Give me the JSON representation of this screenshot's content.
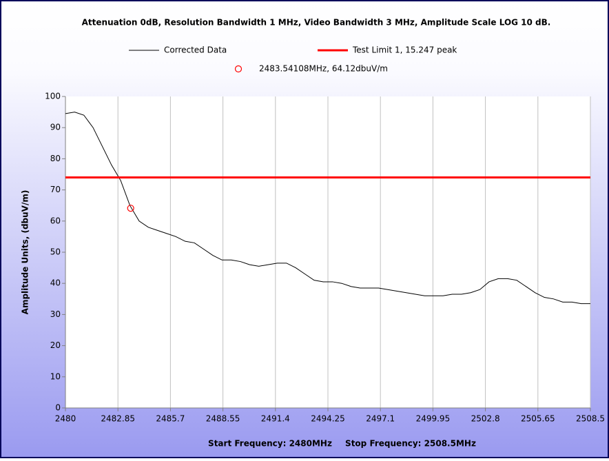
{
  "chart_data": {
    "type": "line",
    "title": "Attenuation 0dB, Resolution Bandwidth 1 MHz, Video Bandwidth 3 MHz, Amplitude Scale LOG 10 dB.",
    "y_label": "Amplitude Units, (dbuV/m)",
    "annotations": [
      "Start Frequency: 2480MHz",
      "Stop Frequency: 2508.5MHz"
    ],
    "xlim": [
      2480,
      2508.5
    ],
    "xticks": [
      2480,
      2482.85,
      2485.7,
      2488.55,
      2491.4,
      2494.25,
      2497.1,
      2499.95,
      2502.8,
      2505.65,
      2508.5
    ],
    "ylim": [
      0,
      100
    ],
    "yticks": [
      0,
      10,
      20,
      30,
      40,
      50,
      60,
      70,
      80,
      90,
      100
    ],
    "grid": "x",
    "series": [
      {
        "name": "Corrected Data",
        "color": "#000000",
        "x": [
          2480,
          2480.5,
          2481,
          2481.5,
          2482,
          2482.5,
          2483,
          2483.5,
          2484,
          2484.5,
          2485,
          2485.5,
          2486,
          2486.5,
          2487,
          2487.5,
          2488,
          2488.5,
          2489,
          2489.5,
          2490,
          2490.5,
          2491,
          2491.5,
          2492,
          2492.5,
          2493,
          2493.5,
          2494,
          2494.5,
          2495,
          2495.5,
          2496,
          2496.5,
          2497,
          2497.5,
          2498,
          2498.5,
          2499,
          2499.5,
          2500,
          2500.5,
          2501,
          2501.5,
          2502,
          2502.5,
          2503,
          2503.5,
          2504,
          2504.5,
          2505,
          2505.5,
          2506,
          2506.5,
          2507,
          2507.5,
          2508,
          2508.5
        ],
        "values": [
          94.5,
          95,
          94,
          90,
          84,
          78,
          73,
          65,
          60,
          58,
          57,
          56,
          55,
          53.5,
          53,
          51,
          49,
          47.5,
          47.5,
          47,
          46,
          45.5,
          46,
          46.5,
          46.5,
          45,
          43,
          41,
          40.5,
          40.5,
          40,
          39,
          38.5,
          38.5,
          38.5,
          38,
          37.5,
          37,
          36.5,
          36,
          36,
          36,
          36.5,
          36.5,
          37,
          38,
          40.5,
          41.5,
          41.5,
          41,
          39,
          37,
          35.5,
          35,
          34,
          34,
          33.5,
          33.5
        ]
      },
      {
        "name": "Test Limit 1, 15.247 peak",
        "color": "#ff0000",
        "x": [
          2480,
          2508.5
        ],
        "values": [
          74,
          74
        ]
      }
    ],
    "marker": {
      "name": "2483.54108MHz, 64.12dbuV/m",
      "x": 2483.54108,
      "y": 64.12,
      "color": "#ff0000"
    }
  }
}
